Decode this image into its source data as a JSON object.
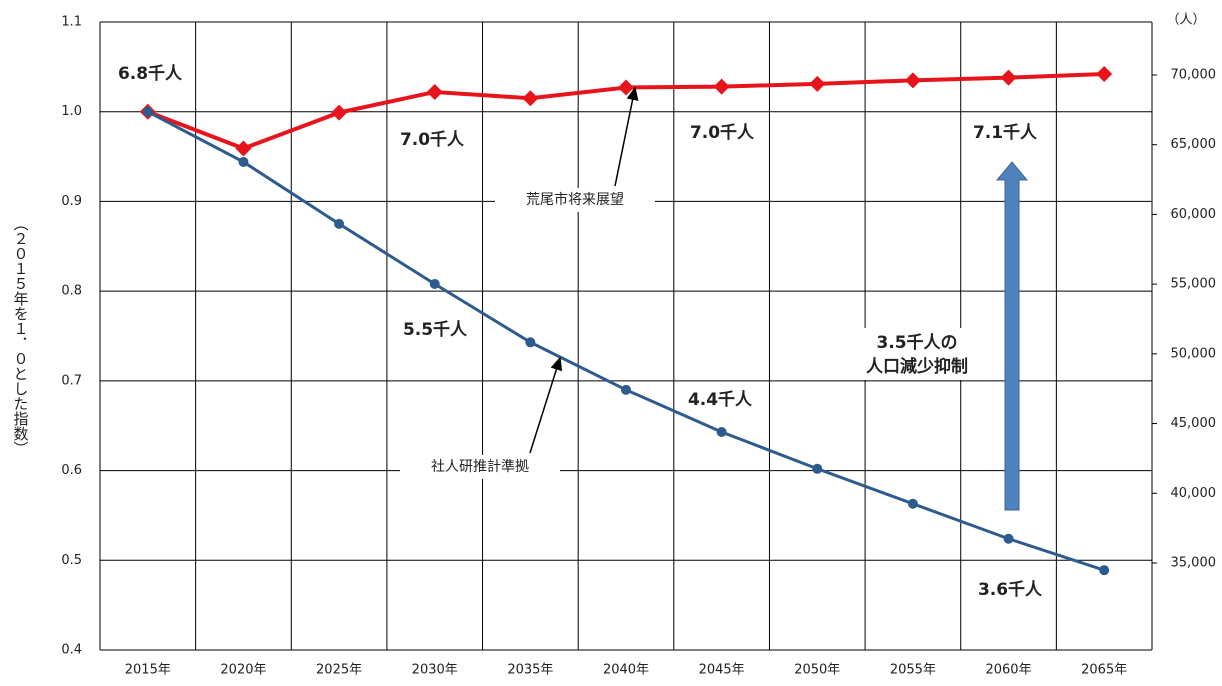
{
  "chart_data": {
    "type": "line",
    "categories": [
      "2015年",
      "2020年",
      "2025年",
      "2030年",
      "2035年",
      "2040年",
      "2045年",
      "2050年",
      "2055年",
      "2060年",
      "2065年"
    ],
    "series": [
      {
        "name": "荒尾市将来展望",
        "color": "#e8141b",
        "marker": "diamond",
        "values": [
          1.0,
          0.959,
          0.999,
          1.022,
          1.015,
          1.027,
          1.028,
          1.031,
          1.035,
          1.038,
          1.042
        ]
      },
      {
        "name": "社人研推計準拠",
        "color": "#2e5b8e",
        "marker": "circle",
        "values": [
          1.0,
          0.944,
          0.875,
          0.808,
          0.743,
          0.69,
          0.643,
          0.602,
          0.563,
          0.524,
          0.489
        ]
      }
    ],
    "ylabel": "（２０１５年を１．０とした指数）",
    "y2label": "（人）",
    "ylim": [
      0.4,
      1.1
    ],
    "yticks": [
      0.4,
      0.5,
      0.6,
      0.7,
      0.8,
      0.9,
      {
        "value": 1,
        "label": "1.0"
      },
      1.1
    ],
    "y2lim": [
      28760,
      73800
    ],
    "y2ticks": [
      {
        "value": 35000,
        "label": "35,000"
      },
      {
        "value": 40000,
        "label": "40,000"
      },
      {
        "value": 45000,
        "label": "45,000"
      },
      {
        "value": 50000,
        "label": "50,000"
      },
      {
        "value": 55000,
        "label": "55,000"
      },
      {
        "value": 60000,
        "label": "60,000"
      },
      {
        "value": 65000,
        "label": "65,000"
      },
      {
        "value": 70000,
        "label": "70,000"
      }
    ],
    "grid": true,
    "annotations": [
      "6.8千人",
      "7.0千人",
      "7.0千人",
      "7.1千人",
      "5.5千人",
      "4.4千人",
      "3.6千人",
      "3.5千人の",
      "人口減少抑制"
    ]
  }
}
